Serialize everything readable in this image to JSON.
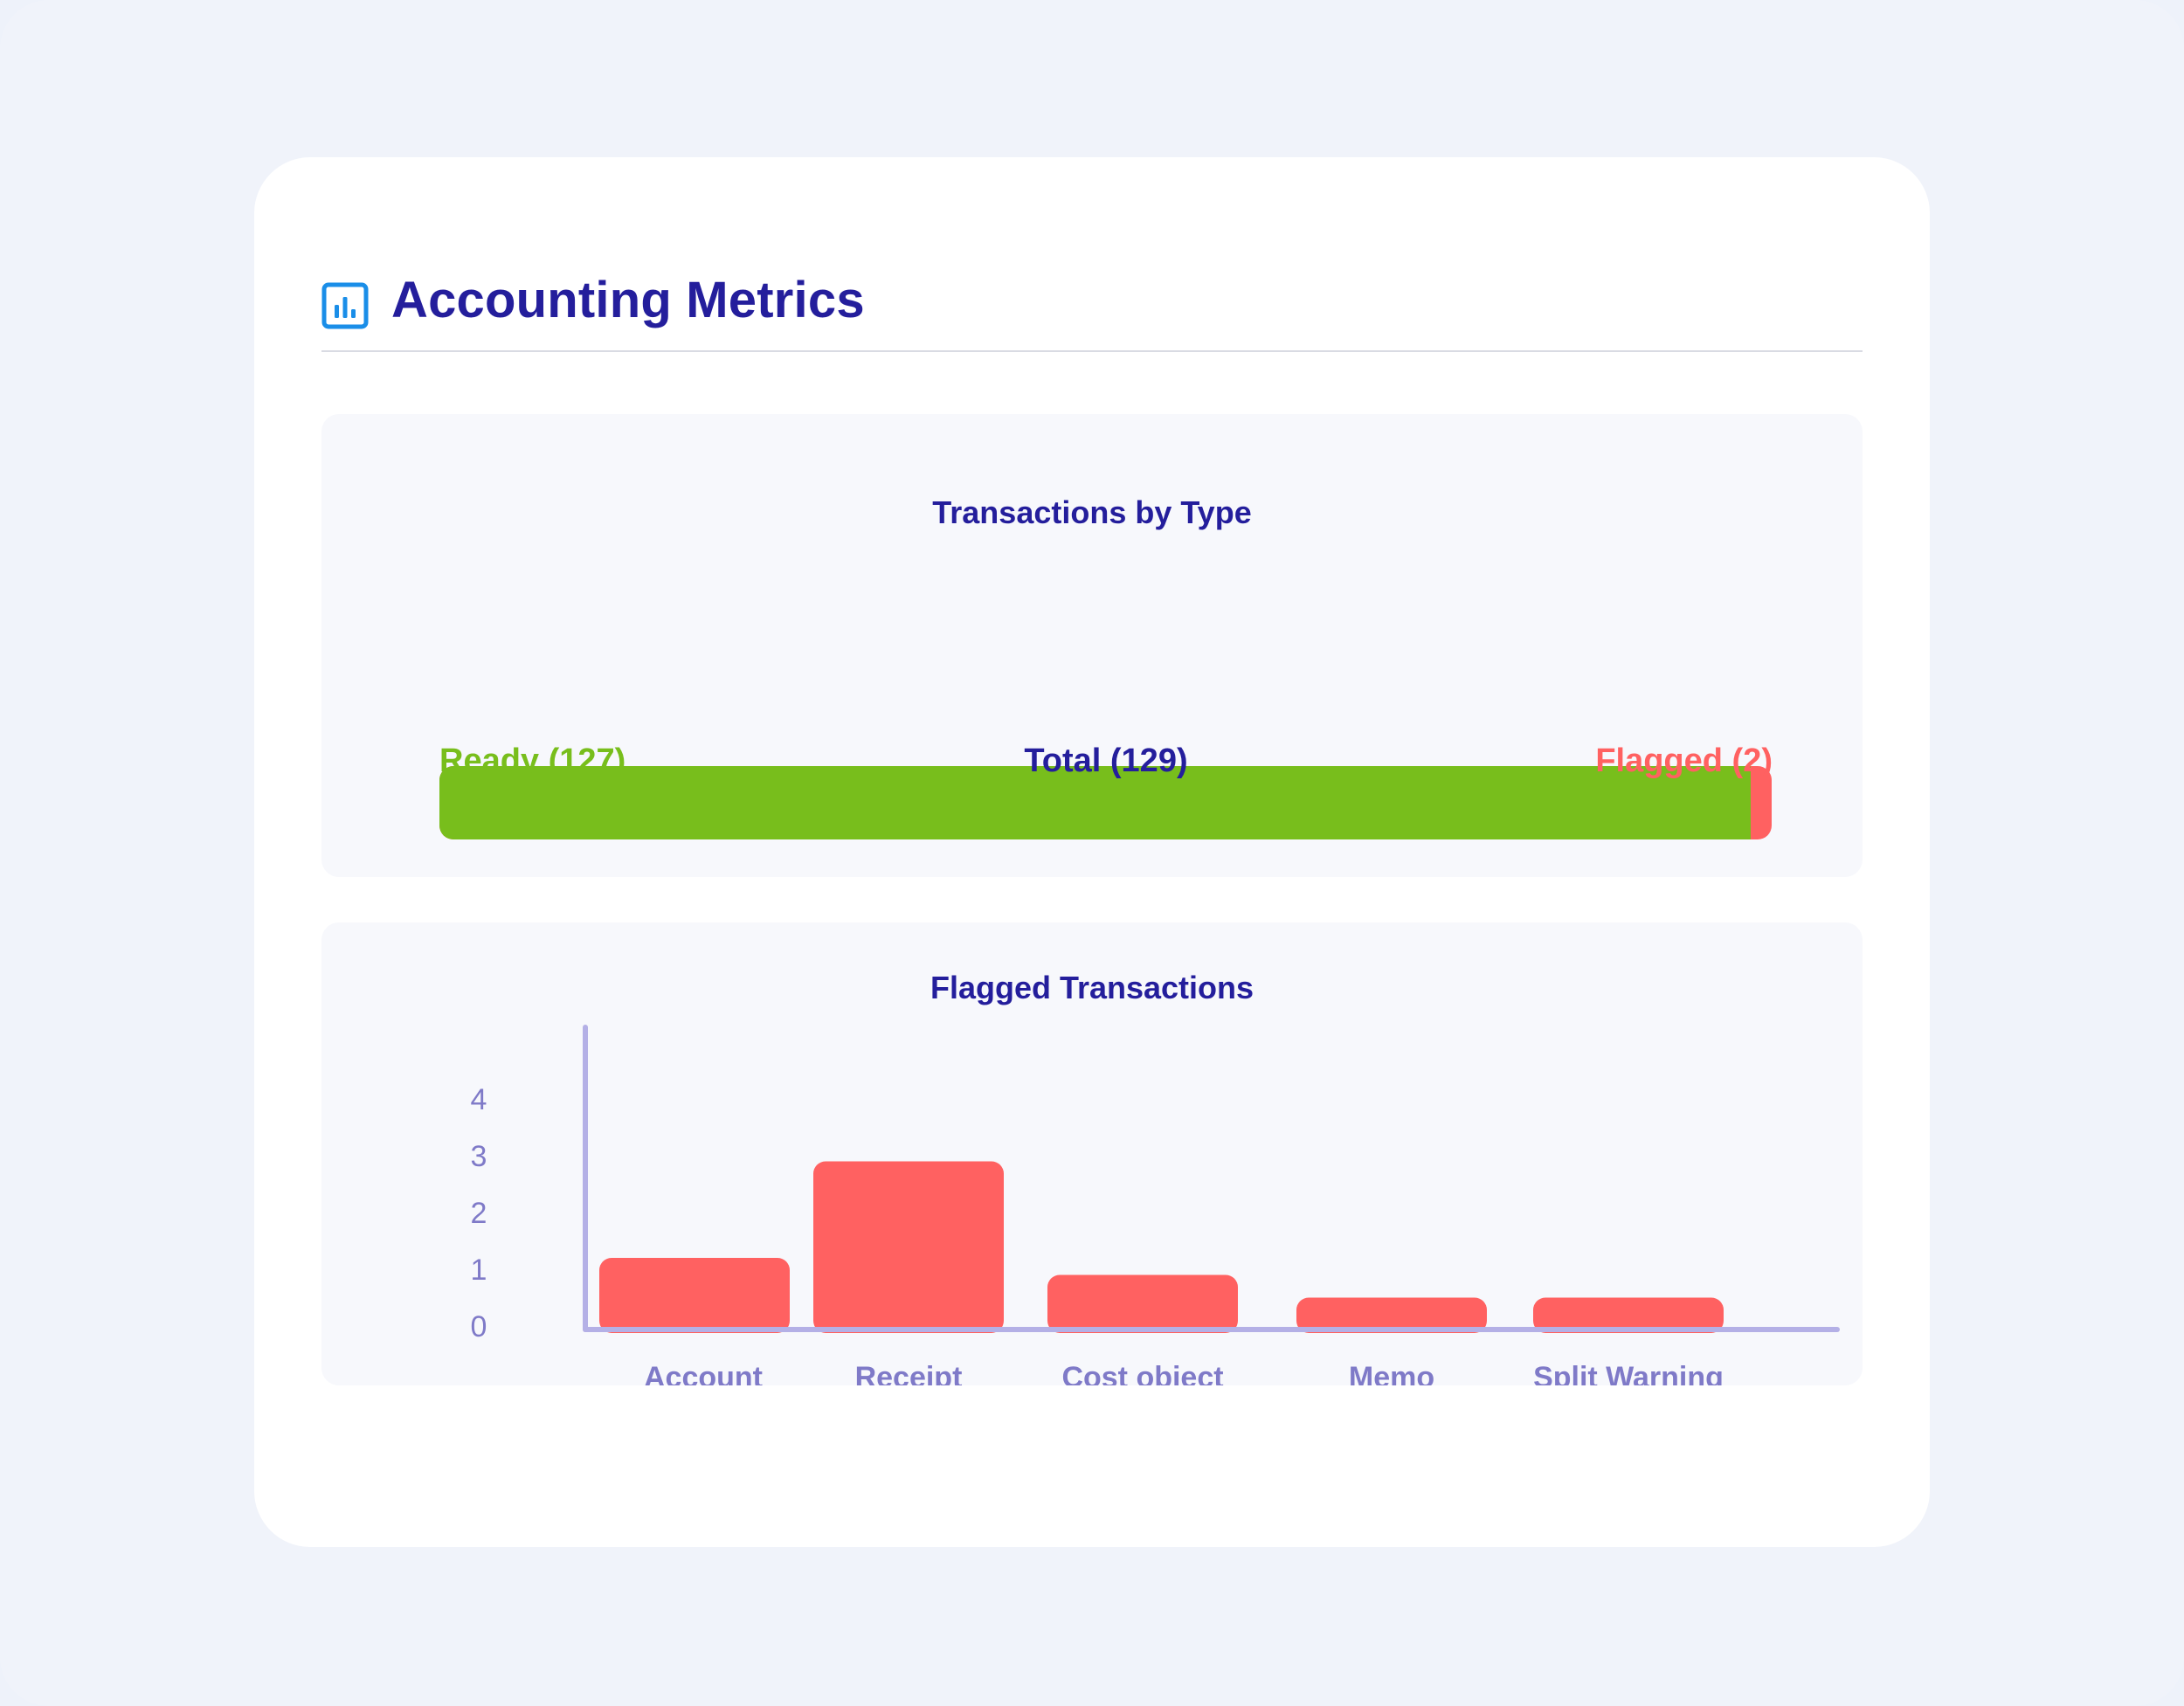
{
  "header": {
    "title": "Accounting Metrics",
    "icon": "bar-chart-icon",
    "icon_color": "#1a8ee8"
  },
  "summary": {
    "title": "Transactions by Type",
    "ready_label": "Ready (127)",
    "total_label": "Total (129)",
    "flagged_label": "Flagged (2)",
    "ready": 127,
    "total": 129,
    "flagged": 2,
    "ready_color": "#78be1c",
    "flagged_color": "#ff6161"
  },
  "flagged": {
    "title": "Flagged Transactions"
  },
  "chart_data": {
    "type": "bar",
    "title": "Flagged Transactions",
    "categories": [
      "Account",
      "Receipt",
      "Cost object",
      "Memo",
      "Split Warning"
    ],
    "values": [
      1.2,
      2.9,
      0.9,
      0.5,
      0.5
    ],
    "yticks": [
      "0",
      "1",
      "2",
      "3",
      "4"
    ],
    "ylim": [
      0,
      4
    ],
    "bar_color": "#ff6161",
    "axis_color": "#b4b0e6",
    "label_color": "#7f7ac8",
    "grid": false
  }
}
